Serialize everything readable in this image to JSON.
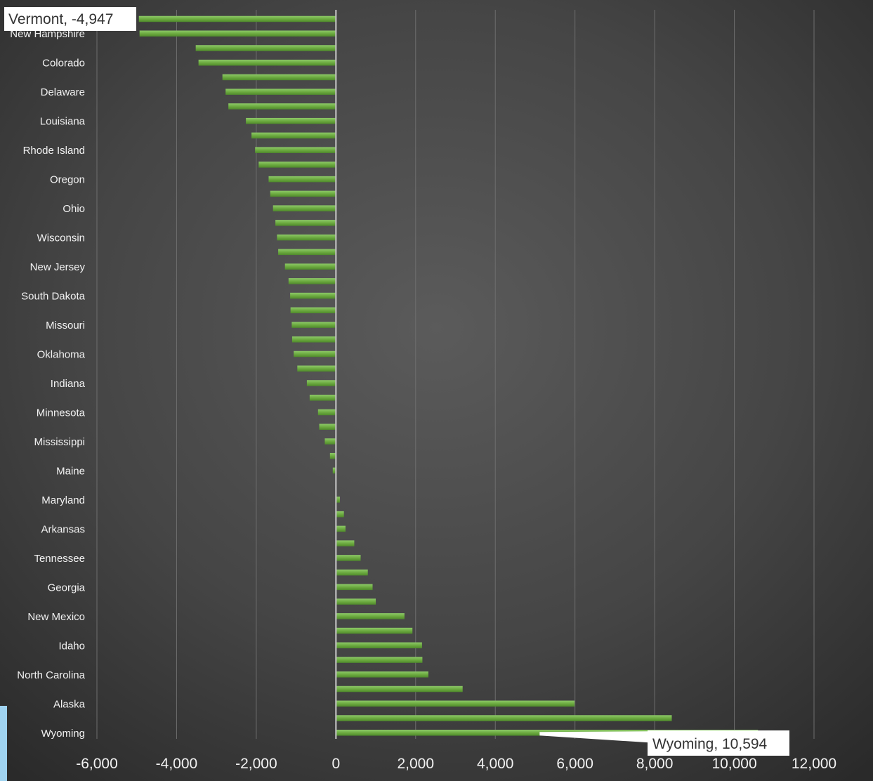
{
  "chart_data": {
    "type": "bar",
    "orientation": "horizontal",
    "title": "",
    "xlabel": "",
    "ylabel": "",
    "xlim": [
      -6000,
      12000
    ],
    "x_ticks": [
      -6000,
      -4000,
      -2000,
      0,
      2000,
      4000,
      6000,
      8000,
      10000,
      12000
    ],
    "x_tick_labels": [
      "-6,000",
      "-4,000",
      "-2,000",
      "0",
      "2,000",
      "4,000",
      "6,000",
      "8,000",
      "10,000",
      "12,000"
    ],
    "grid": "vertical",
    "bar_color": "#70ad47",
    "categories": [
      "",
      "New Hampshire",
      "",
      "Colorado",
      "",
      "Delaware",
      "",
      "Louisiana",
      "",
      "Rhode Island",
      "",
      "Oregon",
      "",
      "Ohio",
      "",
      "Wisconsin",
      "",
      "New Jersey",
      "",
      "South Dakota",
      "",
      "Missouri",
      "",
      "Oklahoma",
      "",
      "Indiana",
      "",
      "Minnesota",
      "",
      "Mississippi",
      "",
      "Maine",
      "",
      "Maryland",
      "",
      "Arkansas",
      "",
      "Tennessee",
      "",
      "Georgia",
      "",
      "New Mexico",
      "",
      "Idaho",
      "",
      "North Carolina",
      "",
      "Alaska",
      "",
      "Wyoming"
    ],
    "values": [
      -4947,
      -4930,
      -3520,
      -3450,
      -2850,
      -2770,
      -2700,
      -2260,
      -2120,
      -2030,
      -1940,
      -1690,
      -1650,
      -1580,
      -1520,
      -1480,
      -1450,
      -1280,
      -1190,
      -1150,
      -1140,
      -1110,
      -1100,
      -1060,
      -970,
      -730,
      -660,
      -450,
      -420,
      -280,
      -150,
      -80,
      0,
      100,
      200,
      240,
      460,
      620,
      800,
      920,
      1000,
      1720,
      1920,
      2160,
      2170,
      2320,
      3180,
      5990,
      8430,
      10594
    ],
    "callouts": [
      {
        "label": "Vermont, -4,947",
        "index": 0
      },
      {
        "label": "Wyoming, 10,594",
        "index": 49
      }
    ]
  }
}
